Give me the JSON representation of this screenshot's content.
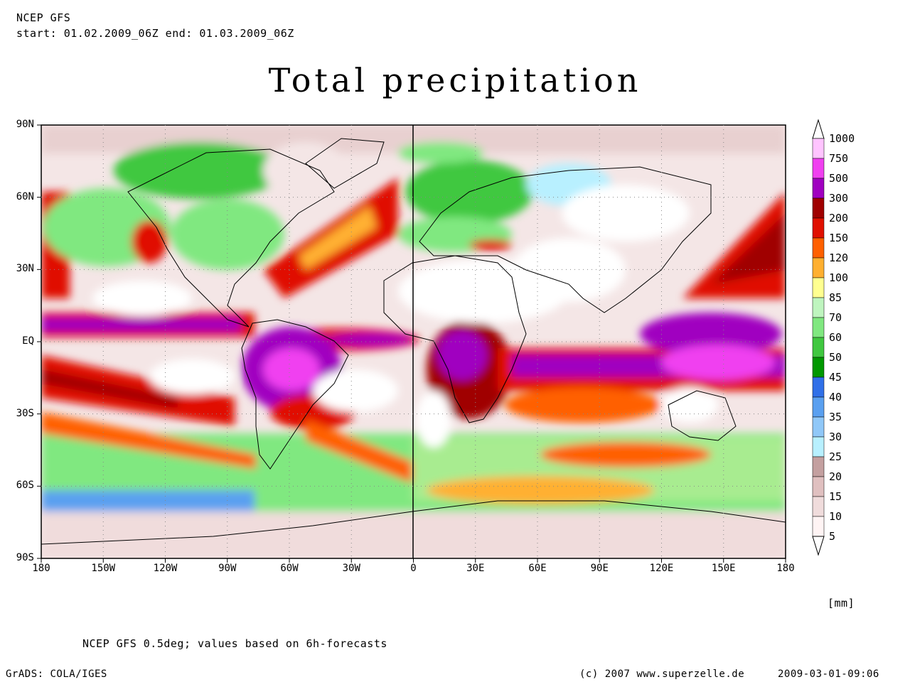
{
  "header": {
    "model": "NCEP GFS",
    "period": "start: 01.02.2009_06Z end: 01.03.2009_06Z"
  },
  "title": "Total precipitation",
  "map": {
    "lat_labels": [
      "90N",
      "60N",
      "30N",
      "EQ",
      "30S",
      "60S",
      "90S"
    ],
    "lat_values": [
      90,
      60,
      30,
      0,
      -30,
      -60,
      -90
    ],
    "lon_labels": [
      "180",
      "150W",
      "120W",
      "90W",
      "60W",
      "30W",
      "0",
      "30E",
      "60E",
      "90E",
      "120E",
      "150E",
      "180"
    ],
    "lon_values": [
      -180,
      -150,
      -120,
      -90,
      -60,
      -30,
      0,
      30,
      60,
      90,
      120,
      150,
      180
    ]
  },
  "legend": {
    "unit": "[mm]",
    "levels": [
      "1000",
      "750",
      "500",
      "300",
      "200",
      "150",
      "120",
      "100",
      "85",
      "70",
      "60",
      "50",
      "45",
      "40",
      "35",
      "30",
      "25",
      "20",
      "15",
      "10",
      "5"
    ],
    "colors": [
      "#ffc4ff",
      "#f040f0",
      "#a000c0",
      "#a00000",
      "#e01000",
      "#ff6000",
      "#ffb030",
      "#ffff90",
      "#bff5bf",
      "#80e880",
      "#40c840",
      "#009800",
      "#3070e8",
      "#5aa0f0",
      "#90c8f8",
      "#b8f0ff",
      "#c4a0a0",
      "#e0c0c0",
      "#f0dcdc",
      "#fff4f4"
    ]
  },
  "footer": {
    "source_note": "NCEP GFS 0.5deg; values based on 6h-forecasts",
    "grads": "GrADS: COLA/IGES",
    "copyright": "(c) 2007 www.superzelle.de",
    "timestamp": "2009-03-01-09:06"
  }
}
